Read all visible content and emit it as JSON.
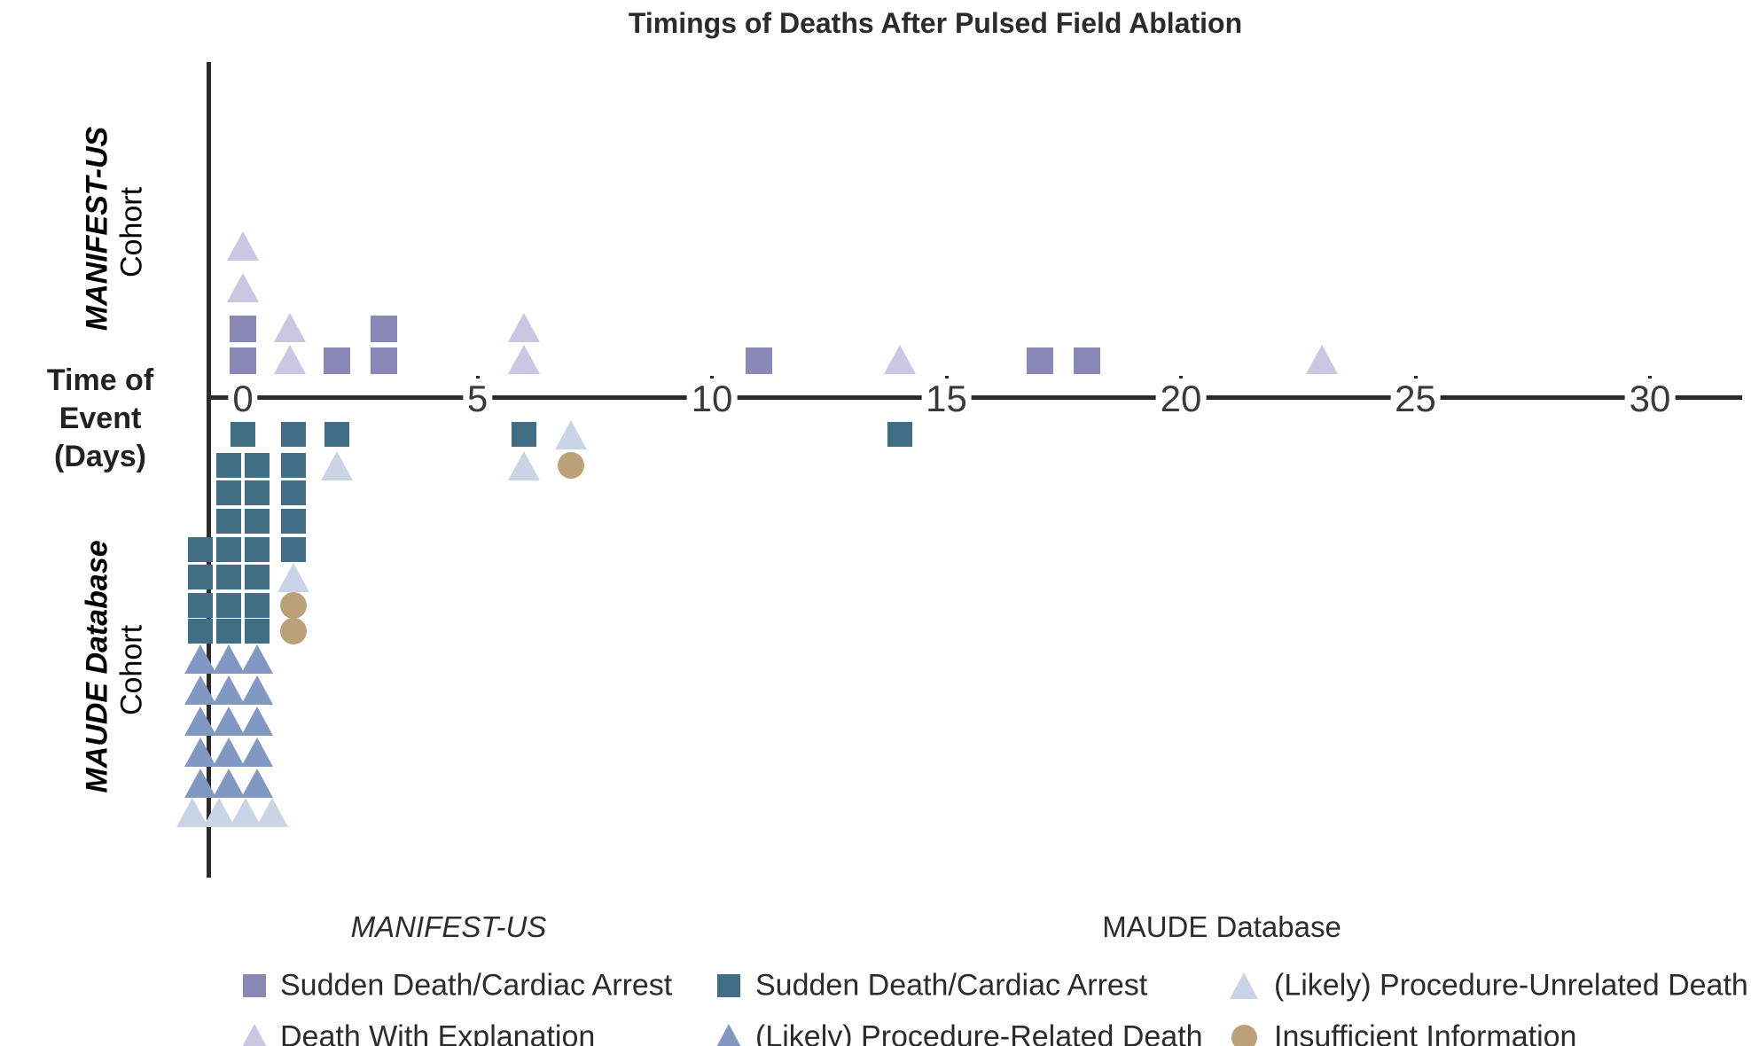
{
  "title": "Timings of Deaths After Pulsed Field Ablation",
  "axis": {
    "label_line1": "Time of Event",
    "label_line2": "(Days)",
    "ticks": [
      0,
      5,
      10,
      15,
      20,
      25,
      30
    ]
  },
  "cohort_labels": {
    "top_main": "MANIFEST-US",
    "top_sub": "Cohort",
    "bottom_main": "MAUDE Database",
    "bottom_sub": "Cohort"
  },
  "colors": {
    "manifest_square": "#8a88b6",
    "manifest_triangle": "#c9c7e2",
    "maude_square": "#416e85",
    "maude_related_triangle": "#8199c2",
    "maude_unrelated_triangle": "#c9d4e6",
    "insufficient_circle": "#bba079",
    "manifest_label": "#908fc4",
    "maude_label": "#3e6d84",
    "axis_line": "#2b2b2b",
    "tick_text": "#3a3a3a",
    "text": "#2b2b2b"
  },
  "legend": {
    "group_titles": [
      "MANIFEST-US",
      "MAUDE Database"
    ],
    "columns": [
      {
        "items": [
          {
            "code": "ms",
            "label": "Sudden Death/Cardiac Arrest"
          },
          {
            "code": "mt",
            "label": "Death With Explanation"
          }
        ]
      },
      {
        "items": [
          {
            "code": "ds",
            "label": "Sudden Death/Cardiac Arrest"
          },
          {
            "code": "dt",
            "label": "(Likely) Procedure-Related Death"
          }
        ]
      },
      {
        "items": [
          {
            "code": "lt",
            "label": "(Likely) Procedure-Unrelated Death"
          },
          {
            "code": "ic",
            "label": "Insufficient Information"
          }
        ]
      }
    ]
  },
  "chart_data": {
    "type": "scatter",
    "title": "Timings of Deaths After Pulsed Field Ablation",
    "xlabel": "Time of Event (Days)",
    "xlim": [
      0,
      30
    ],
    "x_ticks": [
      0,
      5,
      10,
      15,
      20,
      25,
      30
    ],
    "layout": "dot plot; MANIFEST-US cohort stacked above the time axis, MAUDE Database cohort stacked below; day-0 MAUDE events packed in a multi-column grid",
    "series": [
      {
        "name": "MANIFEST-US: Sudden Death/Cardiac Arrest",
        "marker": "square",
        "color": "#8a88b6",
        "days": [
          0,
          0,
          2,
          3,
          3,
          11,
          17,
          18
        ]
      },
      {
        "name": "MANIFEST-US: Death With Explanation",
        "marker": "triangle",
        "color": "#c9c7e2",
        "days": [
          0,
          0,
          1,
          1,
          6,
          6,
          14,
          23
        ]
      },
      {
        "name": "MAUDE: Sudden Death/Cardiac Arrest",
        "marker": "square",
        "color": "#416e85",
        "days": [
          0,
          0,
          0,
          0,
          0,
          0,
          0,
          0,
          0,
          0,
          0,
          0,
          0,
          0,
          0,
          0,
          0,
          0,
          0,
          1,
          1,
          1,
          1,
          1,
          2,
          6,
          14
        ]
      },
      {
        "name": "MAUDE: (Likely) Procedure-Related Death",
        "marker": "triangle",
        "color": "#8199c2",
        "days": [
          0,
          0,
          0,
          0,
          0,
          0,
          0,
          0,
          0,
          0,
          0,
          0,
          0,
          0,
          0
        ]
      },
      {
        "name": "MAUDE: (Likely) Procedure-Unrelated Death",
        "marker": "triangle",
        "color": "#c9d4e6",
        "days": [
          0,
          0,
          0,
          0,
          1,
          2,
          6,
          7
        ]
      },
      {
        "name": "MAUDE: Insufficient Information",
        "marker": "circle",
        "color": "#bba079",
        "days": [
          1,
          1,
          7
        ]
      }
    ],
    "markers": [
      [
        "ms",
        0,
        1,
        0
      ],
      [
        "ms",
        0,
        2,
        0
      ],
      [
        "mt",
        0,
        3,
        0
      ],
      [
        "mt",
        0,
        4,
        0
      ],
      [
        "mt",
        1,
        1,
        0
      ],
      [
        "mt",
        1,
        2,
        0
      ],
      [
        "ms",
        2,
        1,
        0
      ],
      [
        "ms",
        3,
        1,
        0
      ],
      [
        "ms",
        3,
        2,
        0
      ],
      [
        "mt",
        6,
        1,
        0
      ],
      [
        "mt",
        6,
        2,
        0
      ],
      [
        "ms",
        11,
        1,
        0
      ],
      [
        "mt",
        14,
        1,
        0
      ],
      [
        "ms",
        17,
        1,
        0
      ],
      [
        "ms",
        18,
        1,
        0
      ],
      [
        "mt",
        23,
        1,
        0
      ],
      [
        "ds",
        0,
        1,
        0
      ],
      [
        "ds",
        0,
        2,
        -16
      ],
      [
        "ds",
        0,
        2,
        16
      ],
      [
        "ds",
        0,
        3,
        -16
      ],
      [
        "ds",
        0,
        3,
        16
      ],
      [
        "ds",
        0,
        4,
        -16
      ],
      [
        "ds",
        0,
        4,
        16
      ],
      [
        "ds",
        0,
        5,
        -48
      ],
      [
        "ds",
        0,
        5,
        -16
      ],
      [
        "ds",
        0,
        5,
        16
      ],
      [
        "ds",
        0,
        6,
        -48
      ],
      [
        "ds",
        0,
        6,
        -16
      ],
      [
        "ds",
        0,
        6,
        16
      ],
      [
        "ds",
        0,
        7,
        -48
      ],
      [
        "ds",
        0,
        7,
        -16
      ],
      [
        "ds",
        0,
        7,
        16
      ],
      [
        "ds",
        0,
        8,
        -48
      ],
      [
        "ds",
        0,
        8,
        -16
      ],
      [
        "ds",
        0,
        8,
        16
      ],
      [
        "dt",
        0,
        9,
        -48
      ],
      [
        "dt",
        0,
        9,
        -16
      ],
      [
        "dt",
        0,
        9,
        16
      ],
      [
        "dt",
        0,
        10,
        -48
      ],
      [
        "dt",
        0,
        10,
        -16
      ],
      [
        "dt",
        0,
        10,
        16
      ],
      [
        "dt",
        0,
        11,
        -48
      ],
      [
        "dt",
        0,
        11,
        -16
      ],
      [
        "dt",
        0,
        11,
        16
      ],
      [
        "dt",
        0,
        12,
        -48
      ],
      [
        "dt",
        0,
        12,
        -16
      ],
      [
        "dt",
        0,
        12,
        16
      ],
      [
        "dt",
        0,
        13,
        -48
      ],
      [
        "dt",
        0,
        13,
        -16
      ],
      [
        "dt",
        0,
        13,
        16
      ],
      [
        "lt",
        0,
        14,
        -57
      ],
      [
        "lt",
        0,
        14,
        -27
      ],
      [
        "lt",
        0,
        14,
        3
      ],
      [
        "lt",
        0,
        14,
        33
      ],
      [
        "ds",
        1,
        1,
        4
      ],
      [
        "ds",
        1,
        2,
        4
      ],
      [
        "ds",
        1,
        3,
        4
      ],
      [
        "ds",
        1,
        4,
        4
      ],
      [
        "ds",
        1,
        5,
        4
      ],
      [
        "lt",
        1,
        6,
        4
      ],
      [
        "ic",
        1,
        7,
        4
      ],
      [
        "ic",
        1,
        8,
        4
      ],
      [
        "ds",
        2,
        1,
        0
      ],
      [
        "lt",
        2,
        2,
        0
      ],
      [
        "ds",
        6,
        1,
        0
      ],
      [
        "lt",
        6,
        2,
        0
      ],
      [
        "lt",
        7,
        1,
        0
      ],
      [
        "ic",
        7,
        2,
        0
      ],
      [
        "ds",
        14,
        1,
        0
      ]
    ]
  }
}
